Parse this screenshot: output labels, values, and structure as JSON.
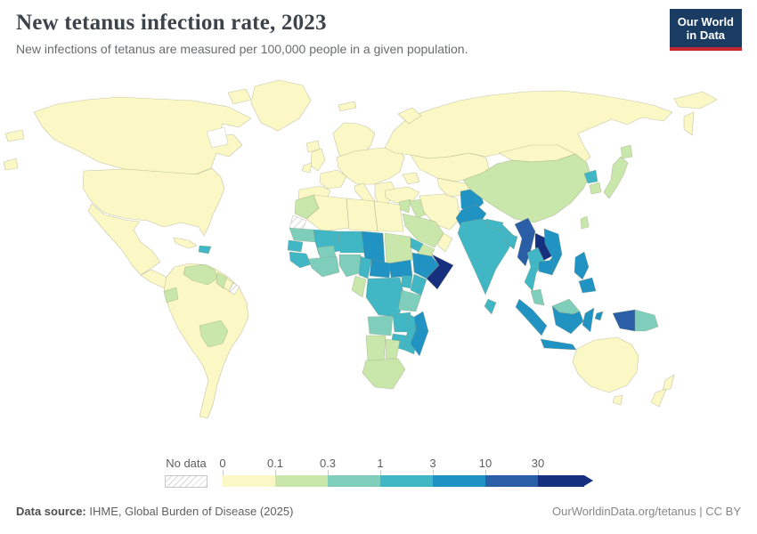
{
  "header": {
    "title": "New tetanus infection rate, 2023",
    "subtitle": "New infections of tetanus are measured per 100,000 people in a given population.",
    "logo_line1": "Our World",
    "logo_line2": "in Data",
    "logo_bg": "#1a3c62",
    "logo_accent": "#c5292f"
  },
  "legend": {
    "no_data_label": "No data"
  },
  "footer": {
    "source_label": "Data source:",
    "source_text": " IHME, Global Burden of Disease (2025)",
    "right_text": "OurWorldinData.org/tetanus | CC BY"
  },
  "chart_data": {
    "type": "choropleth",
    "title": "New tetanus infection rate, 2023",
    "unit": "new tetanus infections per 100,000 people",
    "year": "2023",
    "scale_ticks": [
      "0",
      "0.1",
      "0.3",
      "1",
      "3",
      "10",
      "30"
    ],
    "bin_keys": [
      "b1",
      "b2",
      "b3",
      "b4",
      "b5",
      "b6",
      "b7"
    ],
    "palette": {
      "b1": "#fbf8c5",
      "b2": "#c9e7ab",
      "b3": "#7fcdbb",
      "b4": "#41b6c4",
      "b5": "#2193c2",
      "b6": "#2a5fa7",
      "b7": "#16307f"
    },
    "legend_position": "bottom",
    "regions": {
      "greenland": "b1",
      "arctic_island": "b1",
      "canada": "b1",
      "usa": "b1",
      "mexico": "b1",
      "central_america": "b1",
      "cuba": "b1",
      "hispaniola": "b4",
      "sa_main": "b1",
      "venezuela": "b2",
      "guyana": "b2",
      "suriname": "b1",
      "french_guiana": "no_data",
      "ecuador": "b2",
      "bolivia": "b2",
      "iceland": "b1",
      "svalbard": "b1",
      "uk": "b1",
      "ireland": "b1",
      "scandinavia": "b1",
      "europe_mainland": "b1",
      "iberia": "b1",
      "france": "b1",
      "italy": "b1",
      "balkans": "b1",
      "russia": "b1",
      "novaya_zemlya": "b1",
      "chukotka": "b1",
      "kamchatka": "b1",
      "frag_west1": "b1",
      "frag_west2": "b1",
      "kazakhstan": "b1",
      "central_asia_south": "b1",
      "caucasus": "b1",
      "turkey": "b1",
      "syria_levant": "b2",
      "iraq": "b2",
      "iran": "b1",
      "saudi": "b2",
      "yemen": "b2",
      "oman": "b1",
      "afghanistan": "b5",
      "pakistan": "b5",
      "morocco": "b2",
      "algeria": "b1",
      "libya": "b1",
      "egypt": "b1",
      "western_sahara": "no_data",
      "mauritania": "b3",
      "mali": "b4",
      "niger": "b4",
      "chad": "b5",
      "sudan": "b2",
      "eritrea": "b4",
      "senegal": "b4",
      "guinea_group": "b4",
      "burkina": "b3",
      "west_coast": "b3",
      "nigeria": "b3",
      "cameroon": "b4",
      "car": "b5",
      "southsudan": "b5",
      "ethiopia": "b5",
      "somalia": "b7",
      "kenya": "b4",
      "uganda": "b4",
      "drc": "b4",
      "gabon_congo": "b2",
      "tanzania": "b3",
      "angola": "b3",
      "zambia": "b4",
      "mozambique": "b4",
      "zimbabwe": "b4",
      "namibia": "b2",
      "botswana": "b2",
      "south_africa": "b2",
      "madagascar": "b5",
      "india": "b4",
      "nepal": "b4",
      "bangladesh": "b4",
      "srilanka": "b4",
      "mongolia": "b1",
      "china": "b2",
      "north_korea": "b4",
      "south_korea": "b2",
      "japan": "b2",
      "japan_hokkaido": "b2",
      "taiwan": "b2",
      "myanmar": "b6",
      "laos": "b7",
      "vietnam": "b5",
      "thailand": "b4",
      "cambodia": "b5",
      "malaysia_pen": "b3",
      "sumatra": "b5",
      "java": "b5",
      "borneo_malaysia": "b3",
      "kalimantan": "b5",
      "sulawesi": "b5",
      "moluccas": "b5",
      "philippines": "b5",
      "mindanao": "b5",
      "west_papua": "b6",
      "png": "b3",
      "australia": "b1",
      "tasmania": "b1",
      "nz_north": "b1",
      "nz_south": "b1"
    }
  }
}
